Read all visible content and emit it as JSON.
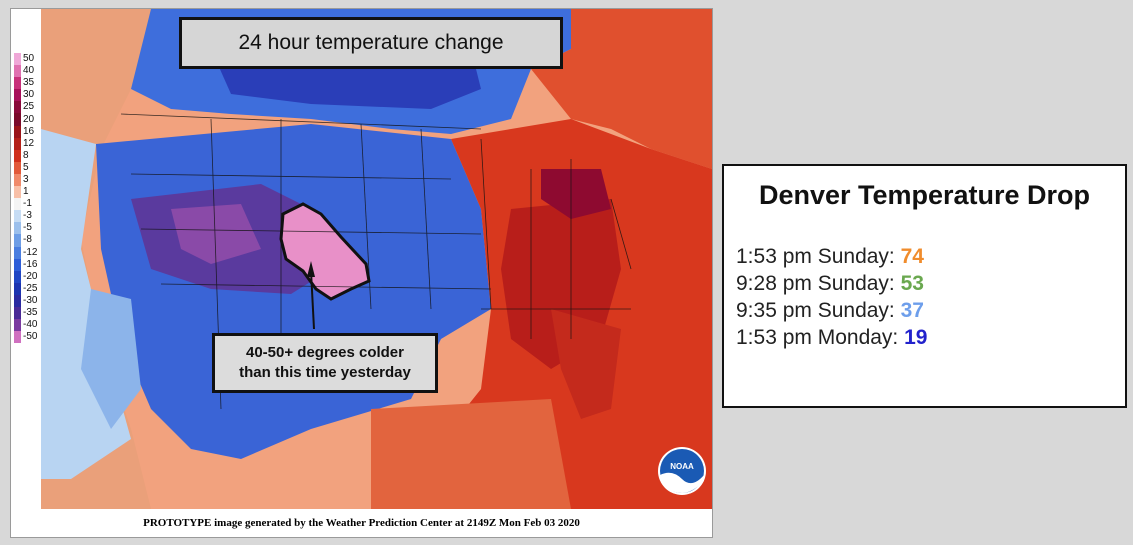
{
  "map": {
    "title": "24 hour temperature change",
    "callout_line1": "40-50+ degrees colder",
    "callout_line2": "than this time yesterday",
    "footer": "PROTOTYPE image generated by the Weather Prediction Center at 2149Z Mon Feb 03 2020",
    "logo_text": "NOAA",
    "legend": [
      {
        "label": "50",
        "color": "#f0a8d8"
      },
      {
        "label": "40",
        "color": "#e070b0"
      },
      {
        "label": "35",
        "color": "#c8307a"
      },
      {
        "label": "30",
        "color": "#a8105a"
      },
      {
        "label": "25",
        "color": "#8a0a3a"
      },
      {
        "label": "20",
        "color": "#7a0a2a"
      },
      {
        "label": "16",
        "color": "#9a1418"
      },
      {
        "label": "12",
        "color": "#b42018"
      },
      {
        "label": "8",
        "color": "#d0301c"
      },
      {
        "label": "5",
        "color": "#e25a3a"
      },
      {
        "label": "3",
        "color": "#f08a6a"
      },
      {
        "label": "1",
        "color": "#f8c0a8"
      },
      {
        "label": "-1",
        "color": "#f4f4f4"
      },
      {
        "label": "-3",
        "color": "#c6dcf4"
      },
      {
        "label": "-5",
        "color": "#9cc0ec"
      },
      {
        "label": "-8",
        "color": "#6e9ee6"
      },
      {
        "label": "-12",
        "color": "#4a7ee0"
      },
      {
        "label": "-16",
        "color": "#2e5ed8"
      },
      {
        "label": "-20",
        "color": "#2046c4"
      },
      {
        "label": "-25",
        "color": "#1c34b0"
      },
      {
        "label": "-30",
        "color": "#2a2aa0"
      },
      {
        "label": "-35",
        "color": "#4a2a96"
      },
      {
        "label": "-40",
        "color": "#7a3aa0"
      },
      {
        "label": "-50",
        "color": "#d070c0"
      }
    ]
  },
  "info": {
    "title": "Denver Temperature Drop",
    "entries": [
      {
        "label": "1:53 pm Sunday: ",
        "value": "74",
        "color": "#f08c2c"
      },
      {
        "label": "9:28 pm Sunday: ",
        "value": "53",
        "color": "#6aa84f"
      },
      {
        "label": "9:35 pm Sunday: ",
        "value": "37",
        "color": "#6d9eeb"
      },
      {
        "label": "1:53 pm Monday: ",
        "value": "19",
        "color": "#2222cc"
      }
    ]
  }
}
